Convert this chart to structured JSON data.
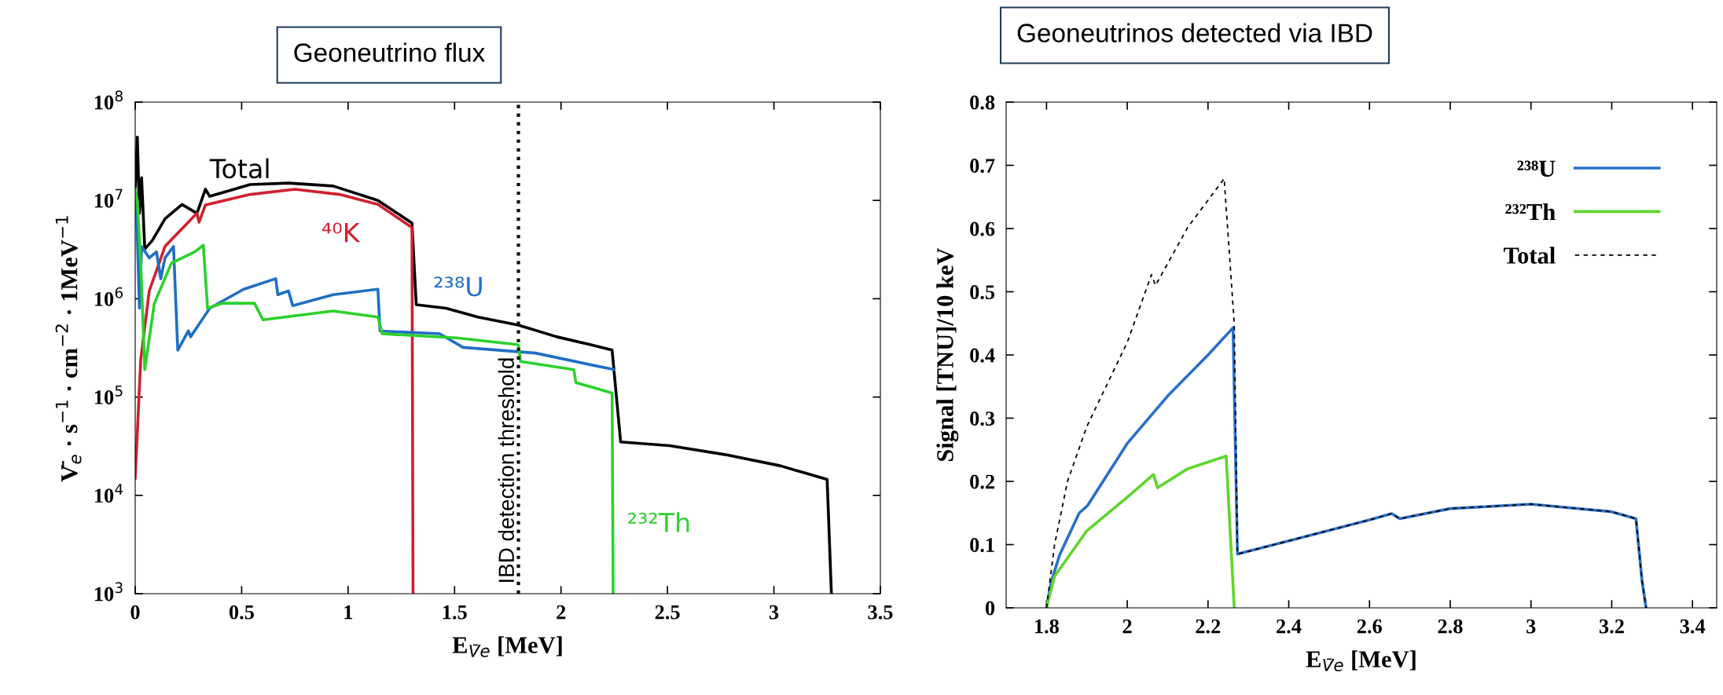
{
  "chart_data": [
    {
      "type": "line",
      "title": "Geoneutrino flux",
      "xlabel": "E$_{V̄e}$ [MeV]",
      "ylabel": "V̄$_{e}$ · s$^{−1}$ · cm$^{−2}$ · 1MeV$^{−1}$",
      "log": "y",
      "xlim": [
        0,
        3.5
      ],
      "xticks": [
        0,
        0.5,
        1,
        1.5,
        2,
        2.5,
        3,
        3.5
      ],
      "ylim": [
        1000,
        100000000
      ],
      "yticks": [
        {
          "value": 1000,
          "label": "10$^{3}$"
        },
        {
          "value": 10000,
          "label": "10$^{4}$"
        },
        {
          "value": 100000,
          "label": "10$^{5}$"
        },
        {
          "value": 1000000,
          "label": "10$^{6}$"
        },
        {
          "value": 10000000,
          "label": "10$^{7}$"
        },
        {
          "value": 100000000,
          "label": "10$^{8}$"
        }
      ],
      "grid": false,
      "legend": false,
      "marker": "none",
      "line_style": "solid",
      "ref_lines": [
        {
          "axis": "x",
          "value": 1.8,
          "label": "IBD detection threshold",
          "color": "#000000",
          "line_style": "dotted"
        }
      ],
      "series": [
        {
          "name": "Total",
          "color": "#000000",
          "x": [
            0,
            0.01,
            0.02,
            0.03,
            0.045,
            0.08,
            0.14,
            0.22,
            0.29,
            0.33,
            0.35,
            0.54,
            0.72,
            0.93,
            1.14,
            1.3,
            1.32,
            1.46,
            1.61,
            1.8,
            1.98,
            2.14,
            2.24,
            2.28,
            2.51,
            2.77,
            3.03,
            3.25,
            3.27
          ],
          "values": [
            13000000,
            44000000,
            7400000,
            17000000,
            3200000,
            3900000,
            6500000,
            9100000,
            7400000,
            13000000,
            11000000,
            14500000,
            15000000,
            14000000,
            10000000,
            5900000,
            870000,
            800000,
            650000,
            540000,
            410000,
            340000,
            300000,
            35000,
            32000,
            26000,
            20000,
            14500,
            1000
          ]
        },
        {
          "name": "⁴⁰K",
          "color": "#d0202e",
          "x": [
            0,
            0.026,
            0.066,
            0.14,
            0.29,
            0.3,
            0.33,
            0.54,
            0.75,
            0.96,
            1.14,
            1.3,
            1.305
          ],
          "values": [
            15000,
            240000,
            1200000,
            3400000,
            7400000,
            6000000,
            9000000,
            11500000,
            13000000,
            11500000,
            9100000,
            5300000,
            1000
          ]
        },
        {
          "name": "²³⁸U",
          "color": "#1f6fc4",
          "x": [
            0.005,
            0.02,
            0.03,
            0.066,
            0.1,
            0.12,
            0.14,
            0.18,
            0.2,
            0.25,
            0.26,
            0.35,
            0.51,
            0.66,
            0.67,
            0.72,
            0.74,
            0.93,
            1.14,
            1.15,
            1.43,
            1.54,
            1.88,
            2.25
          ],
          "values": [
            10000000,
            800000,
            3400000,
            2600000,
            3000000,
            1600000,
            2600000,
            3400000,
            300000,
            470000,
            410000,
            800000,
            1250000,
            1600000,
            1100000,
            1200000,
            850000,
            1100000,
            1250000,
            470000,
            440000,
            320000,
            280000,
            190000
          ]
        },
        {
          "name": "²³²Th",
          "color": "#2bd12b",
          "x": [
            0,
            0.01,
            0.026,
            0.045,
            0.09,
            0.17,
            0.28,
            0.32,
            0.34,
            0.41,
            0.56,
            0.6,
            0.93,
            1.14,
            1.16,
            1.51,
            1.8,
            1.81,
            2.06,
            2.07,
            2.24,
            2.245
          ],
          "values": [
            13000000,
            10000000,
            2300000,
            190000,
            900000,
            2300000,
            3000000,
            3500000,
            800000,
            900000,
            900000,
            610000,
            750000,
            650000,
            440000,
            400000,
            340000,
            230000,
            190000,
            140000,
            110000,
            1000
          ]
        }
      ]
    },
    {
      "type": "line",
      "title": "Geoneutrinos detected via IBD",
      "xlabel": "E$_{V̄e}$ [MeV]",
      "ylabel": "Signal [TNU]/10 keV",
      "xlim": [
        1.7,
        3.46
      ],
      "xticks": [
        1.8,
        2,
        2.2,
        2.4,
        2.6,
        2.8,
        3,
        3.2,
        3.4
      ],
      "ylim": [
        0,
        0.8
      ],
      "yticks": [
        0,
        0.1,
        0.2,
        0.3,
        0.4,
        0.5,
        0.6,
        0.7,
        0.8
      ],
      "grid": false,
      "legend": "top right",
      "marker": "none",
      "series": [
        {
          "name": "²³⁸U",
          "color": "#2a6fc9",
          "line_style": "solid",
          "x": [
            1.8,
            1.811,
            1.832,
            1.881,
            1.902,
            2.0,
            2.1,
            2.2,
            2.262,
            2.273,
            2.4,
            2.6,
            2.655,
            2.675,
            2.8,
            3.0,
            3.2,
            3.26,
            3.275,
            3.285
          ],
          "values": [
            0,
            0.039,
            0.083,
            0.15,
            0.162,
            0.26,
            0.335,
            0.4,
            0.443,
            0.085,
            0.106,
            0.139,
            0.149,
            0.141,
            0.157,
            0.164,
            0.152,
            0.141,
            0.043,
            0
          ]
        },
        {
          "name": "²³²Th",
          "color": "#5fd62b",
          "line_style": "solid",
          "x": [
            1.8,
            1.82,
            1.9,
            2.0,
            2.065,
            2.075,
            2.15,
            2.245,
            2.265
          ],
          "values": [
            0,
            0.05,
            0.122,
            0.175,
            0.211,
            0.19,
            0.22,
            0.24,
            0
          ]
        },
        {
          "name": "Total",
          "color": "#000000",
          "line_style": "dashed",
          "x": [
            1.8,
            1.82,
            1.852,
            1.9,
            2.0,
            2.06,
            2.07,
            2.15,
            2.24,
            2.265,
            2.273,
            2.4,
            2.6,
            2.655,
            2.675,
            2.8,
            3.0,
            3.2,
            3.26,
            3.275,
            3.285
          ],
          "values": [
            0,
            0.1,
            0.2,
            0.287,
            0.42,
            0.527,
            0.51,
            0.602,
            0.679,
            0.45,
            0.085,
            0.106,
            0.139,
            0.149,
            0.141,
            0.157,
            0.164,
            0.152,
            0.141,
            0.043,
            0
          ]
        }
      ]
    }
  ]
}
